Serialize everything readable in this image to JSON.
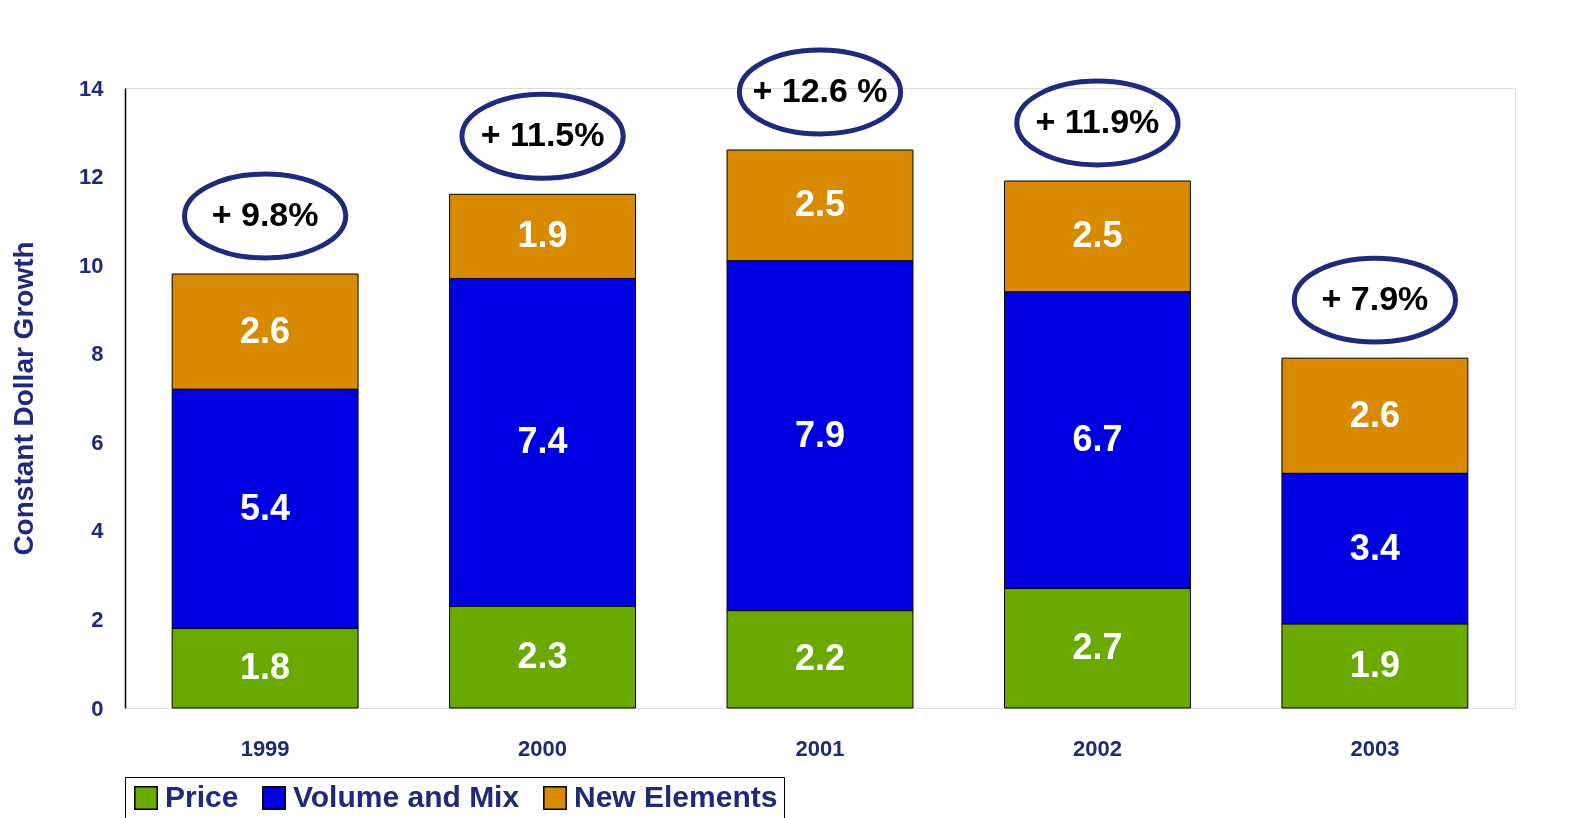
{
  "chart_data": {
    "type": "bar",
    "stacked": true,
    "ylabel": "Constant Dollar Growth",
    "categories": [
      "1999",
      "2000",
      "2001",
      "2002",
      "2003"
    ],
    "series": [
      {
        "name": "Price",
        "color": "#6aaa00",
        "values": [
          1.8,
          2.3,
          2.2,
          2.7,
          1.9
        ]
      },
      {
        "name": "Volume and Mix",
        "color": "#0000e0",
        "values": [
          5.4,
          7.4,
          7.9,
          6.7,
          3.4
        ]
      },
      {
        "name": "New Elements",
        "color": "#d88a00",
        "values": [
          2.6,
          1.9,
          2.5,
          2.5,
          2.6
        ]
      }
    ],
    "totals": [
      "+ 9.8%",
      "+ 11.5%",
      "+ 12.6 %",
      "+ 11.9%",
      "+ 7.9%"
    ],
    "ylim": [
      0,
      14
    ],
    "yticks": [
      0,
      2,
      4,
      6,
      8,
      10,
      12,
      14
    ],
    "data_labels": true,
    "grid": false,
    "legend": "bottom"
  }
}
